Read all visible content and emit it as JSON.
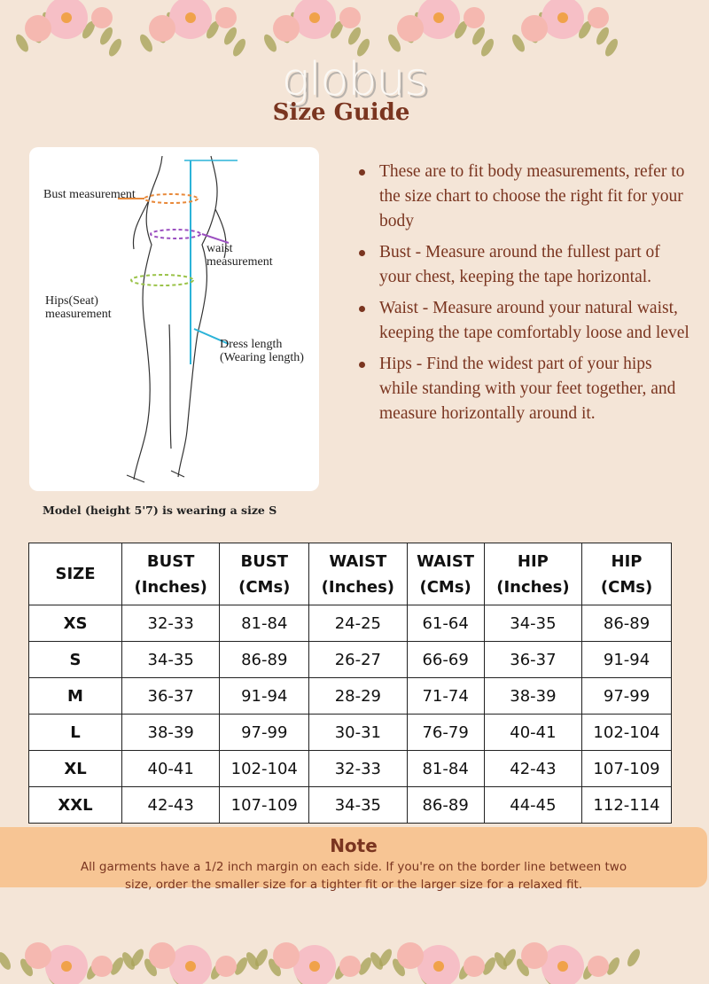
{
  "brand": {
    "logo": "globus",
    "title": "Size Guide"
  },
  "figure": {
    "labels": {
      "bust": "Bust measurement",
      "waist": "waist measurement",
      "hips": "Hips(Seat) measurement",
      "dress": "Dress length (Wearing length)"
    },
    "caption": "Model (height 5'7) is wearing a size S"
  },
  "bullets": [
    "These are to fit body measurements, refer to the size chart to choose the right fit for your body",
    "Bust - Measure around the fullest part of your chest, keeping the tape horizontal.",
    "Waist - Measure around your natural waist, keeping the tape comfortably loose and level",
    "Hips - Find the widest part of your hips while standing with your feet together, and measure horizontally around it."
  ],
  "table": {
    "headers": [
      [
        "SIZE",
        ""
      ],
      [
        "BUST",
        "(Inches)"
      ],
      [
        "BUST",
        "(CMs)"
      ],
      [
        "WAIST",
        "(Inches)"
      ],
      [
        "WAIST",
        "(CMs)"
      ],
      [
        "HIP",
        "(Inches)"
      ],
      [
        "HIP",
        "(CMs)"
      ]
    ],
    "rows": [
      [
        "XS",
        "32-33",
        "81-84",
        "24-25",
        "61-64",
        "34-35",
        "86-89"
      ],
      [
        "S",
        "34-35",
        "86-89",
        "26-27",
        "66-69",
        "36-37",
        "91-94"
      ],
      [
        "M",
        "36-37",
        "91-94",
        "28-29",
        "71-74",
        "38-39",
        "97-99"
      ],
      [
        "L",
        "38-39",
        "97-99",
        "30-31",
        "76-79",
        "40-41",
        "102-104"
      ],
      [
        "XL",
        "40-41",
        "102-104",
        "32-33",
        "81-84",
        "42-43",
        "107-109"
      ],
      [
        "XXL",
        "42-43",
        "107-109",
        "34-35",
        "86-89",
        "44-45",
        "112-114"
      ]
    ]
  },
  "note": {
    "title": "Note",
    "text": "All garments have a 1/2 inch margin on each side. If you're on the border line between two size, order the smaller size for a tighter fit or the larger size for a relaxed fit."
  },
  "colors": {
    "background": "#f4e5d7",
    "accent": "#7a3520",
    "note_bg": "#f7c594"
  }
}
